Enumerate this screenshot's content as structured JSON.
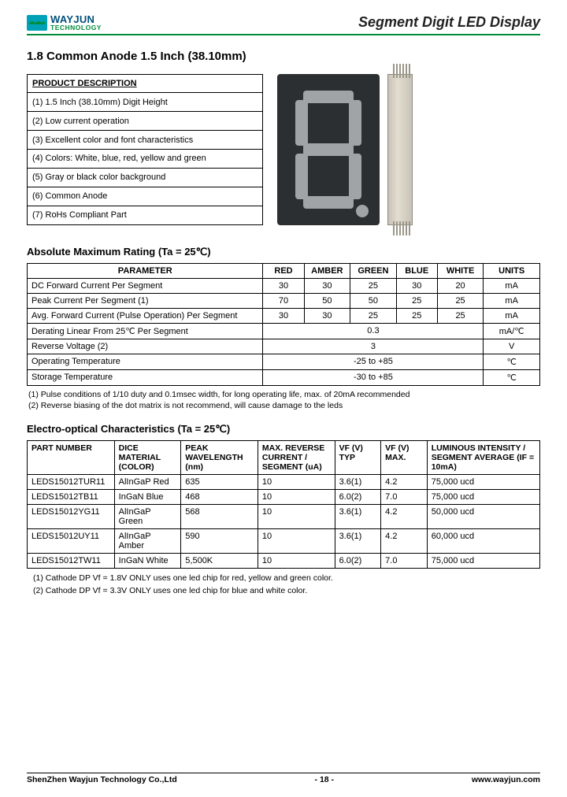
{
  "header": {
    "brand_line1": "WAYJUN",
    "brand_line2": "TECHNOLOGY",
    "doc_title": "Segment Digit LED Display"
  },
  "section_title": "1.8   Common Anode 1.5 Inch (38.10mm)",
  "product_description": {
    "heading": "PRODUCT DESCRIPTION",
    "rows": [
      "(1) 1.5 Inch (38.10mm) Digit Height",
      "(2) Low current operation",
      "(3) Excellent color and font characteristics",
      "(4) Colors: White, blue, red, yellow and green",
      "(5) Gray or black color background",
      "(6) Common Anode",
      "(7) RoHs Compliant Part"
    ]
  },
  "amr": {
    "heading": "Absolute Maximum Rating (Ta = 25℃)",
    "columns": [
      "PARAMETER",
      "RED",
      "AMBER",
      "GREEN",
      "BLUE",
      "WHITE",
      "UNITS"
    ],
    "rows": [
      {
        "param": "DC Forward Current Per Segment",
        "cells": [
          "30",
          "30",
          "25",
          "30",
          "20"
        ],
        "units": "mA"
      },
      {
        "param": "Peak Current Per Segment (1)",
        "cells": [
          "70",
          "50",
          "50",
          "25",
          "25"
        ],
        "units": "mA"
      },
      {
        "param": "Avg. Forward Current (Pulse Operation) Per Segment",
        "cells": [
          "30",
          "30",
          "25",
          "25",
          "25"
        ],
        "units": "mA"
      },
      {
        "param": "Derating Linear From 25℃ Per Segment",
        "span": "0.3",
        "units": "mA/℃"
      },
      {
        "param": "Reverse Voltage (2)",
        "span": "3",
        "units": "V"
      },
      {
        "param": "Operating Temperature",
        "span": "-25 to +85",
        "units": "℃"
      },
      {
        "param": "Storage Temperature",
        "span": "-30 to +85",
        "units": "℃"
      }
    ],
    "notes": [
      "(1) Pulse conditions of 1/10 duty and 0.1msec width, for long operating life, max. of 20mA recommended",
      "(2) Reverse biasing of the dot matrix is not recommend, will cause damage to the leds"
    ]
  },
  "eoc": {
    "heading": "Electro-optical Characteristics (Ta = 25℃)",
    "columns": [
      "PART NUMBER",
      "DICE MATERIAL (COLOR)",
      "PEAK WAVELENGTH (nm)",
      "MAX. REVERSE CURRENT / SEGMENT (uA)",
      "VF (V) TYP",
      "VF (V) MAX.",
      "LUMINOUS INTENSITY / SEGMENT AVERAGE (IF = 10mA)"
    ],
    "rows": [
      [
        "LEDS15012TUR11",
        "AlInGaP Red",
        "635",
        "10",
        "3.6(1)",
        "4.2",
        "75,000 ucd"
      ],
      [
        "LEDS15012TB11",
        "InGaN Blue",
        "468",
        "10",
        "6.0(2)",
        "7.0",
        "75,000 ucd"
      ],
      [
        "LEDS15012YG11",
        "AlInGaP Green",
        "568",
        "10",
        "3.6(1)",
        "4.2",
        "50,000 ucd"
      ],
      [
        "LEDS15012UY11",
        "AlInGaP Amber",
        "590",
        "10",
        "3.6(1)",
        "4.2",
        "60,000 ucd"
      ],
      [
        "LEDS15012TW11",
        "InGaN White",
        "5,500K",
        "10",
        "6.0(2)",
        "7.0",
        "75,000 ucd"
      ]
    ],
    "footnotes": [
      "(1) Cathode DP Vf = 1.8V ONLY uses one led chip for red, yellow and green color.",
      "(2) Cathode DP Vf = 3.3V ONLY uses one led chip for blue and white color."
    ]
  },
  "footer": {
    "left": "ShenZhen Wayjun Technology Co.,Ltd",
    "center": "- 18 -",
    "right": "www.wayjun.com"
  },
  "colors": {
    "brand_blue": "#004f7c",
    "brand_green": "#008c3a",
    "logo_cyan": "#00a2b8",
    "led_body": "#2c2f32",
    "led_segment": "#a0a4a6"
  }
}
